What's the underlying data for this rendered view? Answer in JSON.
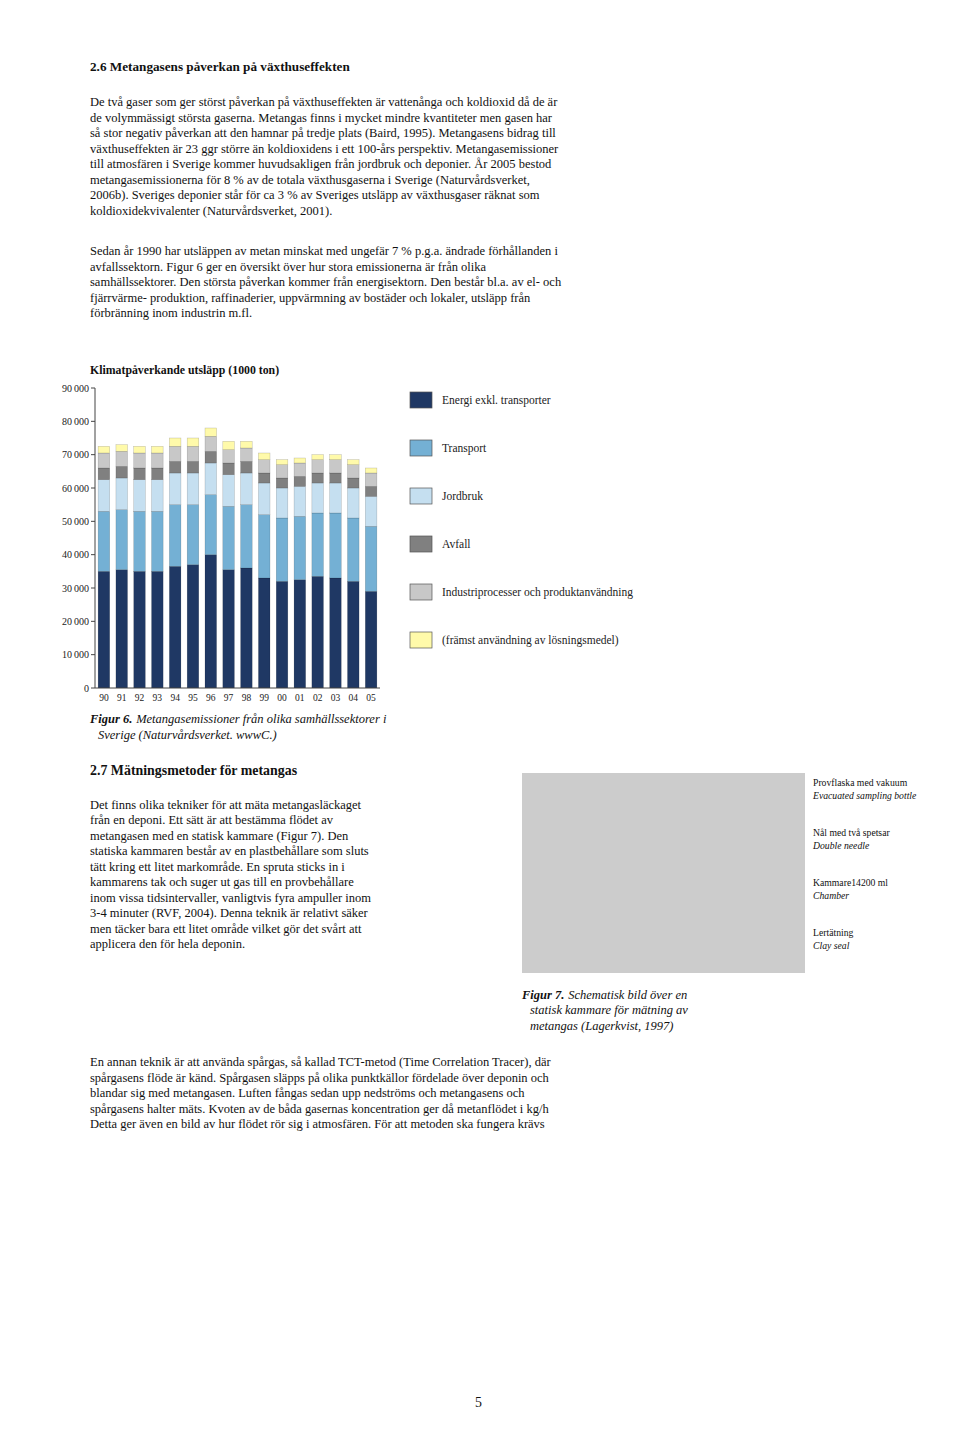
{
  "chart_data": {
    "type": "bar",
    "title": "Klimatpåverkande utsläpp (1000 ton)",
    "stacked": true,
    "grid": false,
    "categories": [
      "90",
      "91",
      "92",
      "93",
      "94",
      "95",
      "96",
      "97",
      "98",
      "99",
      "00",
      "01",
      "02",
      "03",
      "04",
      "05"
    ],
    "series": [
      {
        "name": "Energi exkl. transporter",
        "color": "#1f3864",
        "values": [
          35000,
          35500,
          35000,
          35000,
          36500,
          37000,
          40000,
          35500,
          36000,
          33000,
          32000,
          32500,
          33500,
          33000,
          32000,
          29000
        ]
      },
      {
        "name": "Transport",
        "color": "#74b0d4",
        "values": [
          18000,
          18000,
          18000,
          18000,
          18500,
          18000,
          18000,
          19000,
          19000,
          19000,
          19000,
          19000,
          19000,
          19500,
          19000,
          19500
        ]
      },
      {
        "name": "Jordbruk",
        "color": "#c5dff0",
        "values": [
          9500,
          9500,
          9500,
          9500,
          9500,
          9500,
          9500,
          9500,
          9500,
          9500,
          9000,
          9000,
          9000,
          9000,
          9000,
          9000
        ]
      },
      {
        "name": "Avfall",
        "color": "#808080",
        "values": [
          3500,
          3500,
          3500,
          3500,
          3500,
          3500,
          3500,
          3500,
          3500,
          3000,
          3000,
          3000,
          3000,
          3000,
          3000,
          3000
        ]
      },
      {
        "name": "Industriprocesser och produktanvändning",
        "color": "#c8c8c8",
        "values": [
          4500,
          4500,
          4500,
          4500,
          4500,
          4500,
          4500,
          4000,
          4000,
          4000,
          4000,
          4000,
          4000,
          4000,
          4000,
          4000
        ]
      },
      {
        "name": "(främst användning av lösningsmedel)",
        "color": "#fffaaa",
        "values": [
          2000,
          2000,
          2000,
          2000,
          2500,
          2500,
          2500,
          2500,
          2000,
          2000,
          1500,
          1500,
          1500,
          1500,
          1500,
          1500
        ]
      }
    ],
    "ylim": [
      0,
      90000
    ],
    "yticks": [
      0,
      {
        "value": 10000,
        "label": "10 000"
      },
      {
        "value": 20000,
        "label": "20 000"
      },
      {
        "value": 30000,
        "label": "30 000"
      },
      {
        "value": 40000,
        "label": "40 000"
      },
      {
        "value": 50000,
        "label": "50 000"
      },
      {
        "value": 60000,
        "label": "60 000"
      },
      {
        "value": 70000,
        "label": "70 000"
      },
      {
        "value": 80000,
        "label": "80 000"
      },
      {
        "value": 90000,
        "label": "90 000"
      }
    ]
  },
  "page": {
    "heading1": "2.6 Metangasens påverkan på växthuseffekten",
    "para1": [
      "De två gaser som ger störst påverkan på växthuseffekten är vattenånga och koldioxid då de är",
      "de volymmässigt största gaserna. Metangas finns i mycket mindre kvantiteter men gasen har",
      "så stor negativ påverkan att den hamnar på tredje plats (Baird, 1995). Metangasens bidrag till",
      "växthuseffekten är 23 ggr större än koldioxidens i ett 100-års perspektiv. Metangasemissioner",
      "till atmosfären i Sverige kommer huvudsakligen från jordbruk och deponier. År 2005 bestod",
      "metangasemissionerna för 8 % av de totala växthusgaserna i Sverige (Naturvårdsverket,",
      "2006b). Sveriges deponier står för ca 3 % av Sveriges utsläpp av växthusgaser räknat som",
      "koldioxidekvivalenter (Naturvårdsverket, 2001)."
    ],
    "para2": [
      "Sedan år 1990 har utsläppen av metan minskat med ungefär 7 % p.g.a. ändrade förhållanden i",
      "avfallssektorn. Figur 6 ger en översikt över hur stora emissionerna är från olika",
      "samhällssektorer. Den största påverkan kommer från energisektorn. Den består bl.a. av el- och",
      "fjärrvärme- produktion, raffinaderier, uppvärmning av bostäder och lokaler, utsläpp från",
      "förbränning inom industrin m.fl."
    ],
    "figure6_caption": {
      "label": "Figur 6.",
      "lines": [
        "Metangasemissioner från olika samhällssektorer i",
        "Sverige (Naturvårdsverket. wwwC.)"
      ]
    },
    "heading27": "2.7 Mätningsmetoder för metangas",
    "section27_column": [
      "Det finns olika tekniker för att mäta metangasläckaget",
      "från en deponi. Ett sätt är att bestämma flödet av",
      "metangasen med en statisk kammare (Figur 7). Den",
      "statiska kammaren består av en plastbehållare som sluts",
      "tätt kring ett litet markområde. En spruta sticks in i",
      "kammarens tak och suger ut gas till en provbehållare",
      "inom vissa tidsintervaller, vanligtvis fyra ampuller inom",
      "3-4 minuter (RVF, 2004). Denna teknik är relativt säker",
      "men täcker bara ett litet område vilket gör det svårt att",
      "applicera den för hela deponin."
    ],
    "figure7_labels": [
      {
        "swedish": "Provflaska med vakuum",
        "english": "Evacuated sampling bottle"
      },
      {
        "swedish": "Nål med två spetsar",
        "english": "Double needle"
      },
      {
        "swedish": "Kammare14200 ml",
        "english": "Chamber"
      },
      {
        "swedish": "Lertätning",
        "english": "Clay seal"
      }
    ],
    "figure7_caption": {
      "label": "Figur 7.",
      "lines": [
        "Schematisk bild över en",
        "statisk kammare för mätning av",
        "metangas (Lagerkvist, 1997)"
      ]
    },
    "para3": [
      "En annan teknik är att använda spårgas, så kallad TCT-metod (Time Correlation Tracer), där",
      "spårgasens flöde är känd. Spårgasen släpps på olika punktkällor fördelade över deponin och",
      "blandar sig med metangasen. Luften fångas sedan upp nedströms och metangasens och",
      "spårgasens halter mäts. Kvoten av de båda gasernas koncentration ger då metanflödet i kg/h",
      "Detta ger även en bild av hur flödet rör sig i atmosfären. För att metoden ska fungera krävs"
    ],
    "page_number": "5"
  }
}
